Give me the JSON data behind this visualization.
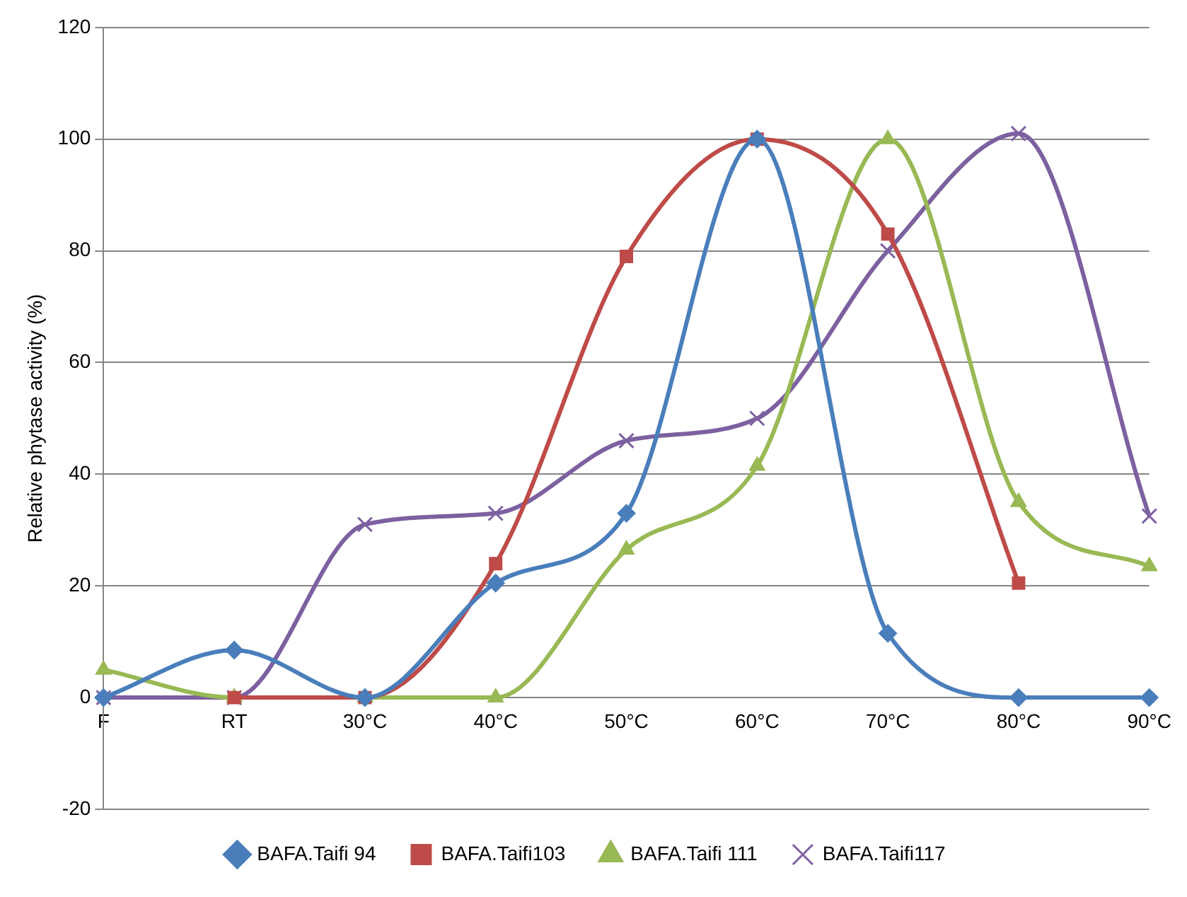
{
  "chart_data": {
    "type": "line",
    "ylabel": "Relative phytase activity (%)",
    "categories": [
      "F",
      "RT",
      "30°C",
      "40°C",
      "50°C",
      "60°C",
      "70°C",
      "80°C",
      "90°C"
    ],
    "series": [
      {
        "name": "BAFA.Taifi 94",
        "color": "#4a7ebb",
        "marker": "diamond",
        "values": [
          0,
          8.5,
          0,
          20.5,
          33,
          100,
          11.5,
          0,
          0
        ]
      },
      {
        "name": "BAFA.Taifi103",
        "color": "#be4b48",
        "marker": "square",
        "values": [
          null,
          0,
          0,
          24,
          79,
          100,
          83,
          20.5,
          null
        ]
      },
      {
        "name": "BAFA.Taifi 111",
        "color": "#98b954",
        "marker": "triangle",
        "values": [
          5,
          0,
          0,
          0,
          26.5,
          41.5,
          100,
          35,
          23.5
        ]
      },
      {
        "name": "BAFA.Taifi117",
        "color": "#7d60a0",
        "marker": "cross",
        "values": [
          0,
          0,
          31,
          33,
          46,
          50,
          80,
          101,
          32.5
        ]
      }
    ],
    "ylim": [
      -20,
      120
    ],
    "yticks": [
      -20,
      0,
      20,
      40,
      60,
      80,
      100,
      120
    ],
    "grid": "y",
    "legend": "bottom"
  }
}
